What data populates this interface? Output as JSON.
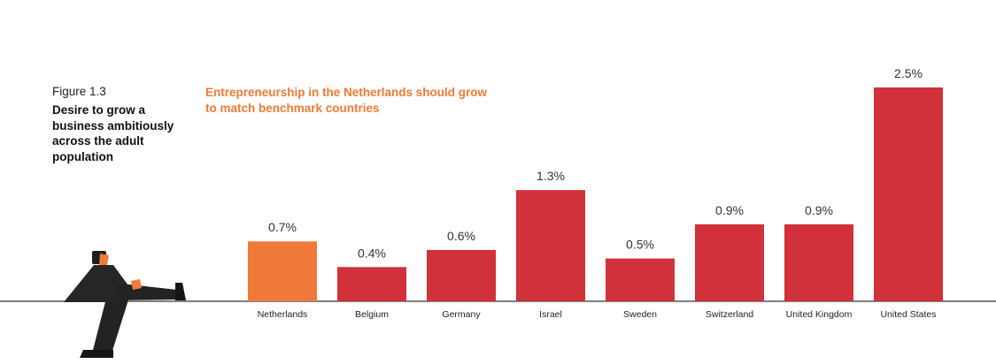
{
  "figure": {
    "number": "Figure 1.3",
    "title": "Desire to grow a business ambitiously across the adult population"
  },
  "headline": {
    "text": "Entrepreneurship in the Netherlands should grow to match benchmark countries",
    "color": "#f07a35"
  },
  "colors": {
    "highlight": "#f07a3a",
    "bar": "#d0313a",
    "baseline": "#333333"
  },
  "illustration": "businessman-kicking-icon",
  "chart_data": {
    "type": "bar",
    "categories": [
      "Netherlands",
      "Belgium",
      "Germany",
      "Israel",
      "Sweden",
      "Switzerland",
      "United Kingdom",
      "United States"
    ],
    "values": [
      0.7,
      0.4,
      0.6,
      1.3,
      0.5,
      0.9,
      0.9,
      2.5
    ],
    "value_labels": [
      "0.7%",
      "0.4%",
      "0.6%",
      "1.3%",
      "0.5%",
      "0.9%",
      "0.9%",
      "2.5%"
    ],
    "highlight_category": "Netherlands",
    "unit": "%",
    "ylim": [
      0,
      2.5
    ],
    "grid": false,
    "legend": "none"
  }
}
